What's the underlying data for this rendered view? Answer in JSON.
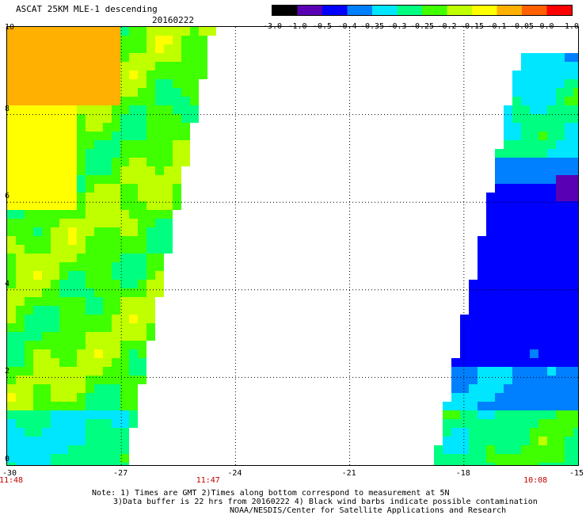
{
  "header": {
    "title": "ASCAT 25KM MLE-1 descending",
    "date": "20160222"
  },
  "colorbar": {
    "labels": [
      "-3.0",
      "-1.0",
      "-0.5",
      "-0.4",
      "-0.35",
      "-0.3",
      "-0.25",
      "-0.2",
      "-0.15",
      "-0.1",
      "-0.05",
      "0.0",
      "1.0"
    ],
    "colors": [
      "#000000",
      "#5a00b4",
      "#0000ff",
      "#0080ff",
      "#00e6ff",
      "#00ff80",
      "#40ff00",
      "#c0ff00",
      "#ffff00",
      "#ffb000",
      "#ff6000",
      "#ff0000"
    ]
  },
  "chart_data": {
    "type": "heatmap",
    "xlabel": "",
    "ylabel": "",
    "x_ticks": [
      "-30",
      "-27",
      "-24",
      "-21",
      "-18",
      "-15"
    ],
    "y_ticks": [
      "0",
      "2",
      "4",
      "6",
      "8",
      "10"
    ],
    "xlim": [
      -30,
      -15
    ],
    "ylim": [
      0,
      10
    ],
    "grid": true,
    "swaths": [
      {
        "name": "west",
        "lon_range": [
          -30,
          -24.7
        ],
        "dominant_values": [
          -0.1,
          -0.15,
          -0.2
        ],
        "north_value": -0.05
      },
      {
        "name": "east",
        "lon_range": [
          -18.6,
          -15
        ],
        "dominant_values": [
          -0.4,
          -0.35,
          -0.25,
          -0.2
        ]
      }
    ],
    "time_labels": [
      {
        "text": "11:48",
        "lon": -30
      },
      {
        "text": "11:47",
        "lon": -24.7
      },
      {
        "text": "10:08",
        "lon": -16.1
      }
    ]
  },
  "notes": {
    "line1": "Note: 1) Times are GMT 2)Times along bottom correspond to measurement at 5N",
    "line2": "3)Data buffer is 22 hrs from 20160222 4) Black wind barbs indicate possible contamination",
    "line3": "NOAA/NESDIS/Center for Satellite Applications and Research"
  }
}
